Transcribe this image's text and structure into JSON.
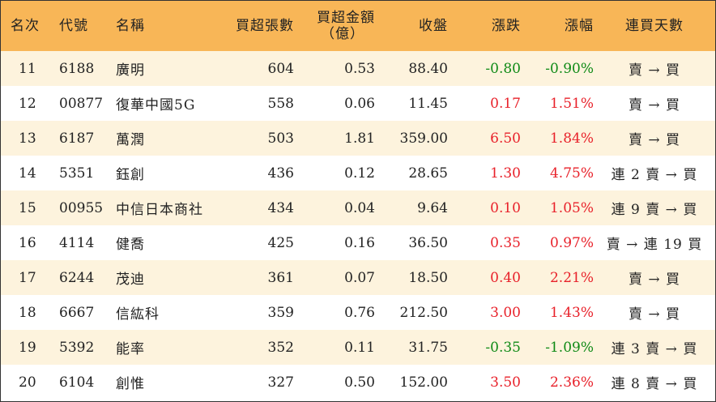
{
  "headers": {
    "rank": "名次",
    "code": "代號",
    "name": "名稱",
    "net_buy_lots": "買超張數",
    "net_buy_amount": "買超金額",
    "net_buy_amount_unit": "（億）",
    "close": "收盤",
    "change": "漲跌",
    "change_pct": "漲幅",
    "streak": "連買天數"
  },
  "colors": {
    "header_bg": "#f8b657",
    "row_odd_bg": "#fdf3dd",
    "row_even_bg": "#ffffff",
    "up": "#e8212a",
    "down": "#0f8a16"
  },
  "rows": [
    {
      "rank": "11",
      "code": "6188",
      "name": "廣明",
      "lots": "604",
      "amount": "0.53",
      "close": "88.40",
      "change": "-0.80",
      "pct": "-0.90%",
      "streak": "賣 → 買",
      "dir": "down"
    },
    {
      "rank": "12",
      "code": "00877",
      "name": "復華中國5G",
      "lots": "558",
      "amount": "0.06",
      "close": "11.45",
      "change": "0.17",
      "pct": "1.51%",
      "streak": "賣 → 買",
      "dir": "up"
    },
    {
      "rank": "13",
      "code": "6187",
      "name": "萬潤",
      "lots": "503",
      "amount": "1.81",
      "close": "359.00",
      "change": "6.50",
      "pct": "1.84%",
      "streak": "賣 → 買",
      "dir": "up"
    },
    {
      "rank": "14",
      "code": "5351",
      "name": "鈺創",
      "lots": "436",
      "amount": "0.12",
      "close": "28.65",
      "change": "1.30",
      "pct": "4.75%",
      "streak": "連 2 賣 → 買",
      "dir": "up"
    },
    {
      "rank": "15",
      "code": "00955",
      "name": "中信日本商社",
      "lots": "434",
      "amount": "0.04",
      "close": "9.64",
      "change": "0.10",
      "pct": "1.05%",
      "streak": "連 9 賣 → 買",
      "dir": "up"
    },
    {
      "rank": "16",
      "code": "4114",
      "name": "健喬",
      "lots": "425",
      "amount": "0.16",
      "close": "36.50",
      "change": "0.35",
      "pct": "0.97%",
      "streak": "賣 → 連 19 買",
      "dir": "up"
    },
    {
      "rank": "17",
      "code": "6244",
      "name": "茂迪",
      "lots": "361",
      "amount": "0.07",
      "close": "18.50",
      "change": "0.40",
      "pct": "2.21%",
      "streak": "賣 → 買",
      "dir": "up"
    },
    {
      "rank": "18",
      "code": "6667",
      "name": "信紘科",
      "lots": "359",
      "amount": "0.76",
      "close": "212.50",
      "change": "3.00",
      "pct": "1.43%",
      "streak": "賣 → 買",
      "dir": "up"
    },
    {
      "rank": "19",
      "code": "5392",
      "name": "能率",
      "lots": "352",
      "amount": "0.11",
      "close": "31.75",
      "change": "-0.35",
      "pct": "-1.09%",
      "streak": "連 3 賣 → 買",
      "dir": "down"
    },
    {
      "rank": "20",
      "code": "6104",
      "name": "創惟",
      "lots": "327",
      "amount": "0.50",
      "close": "152.00",
      "change": "3.50",
      "pct": "2.36%",
      "streak": "連 8 賣 → 買",
      "dir": "up"
    }
  ]
}
